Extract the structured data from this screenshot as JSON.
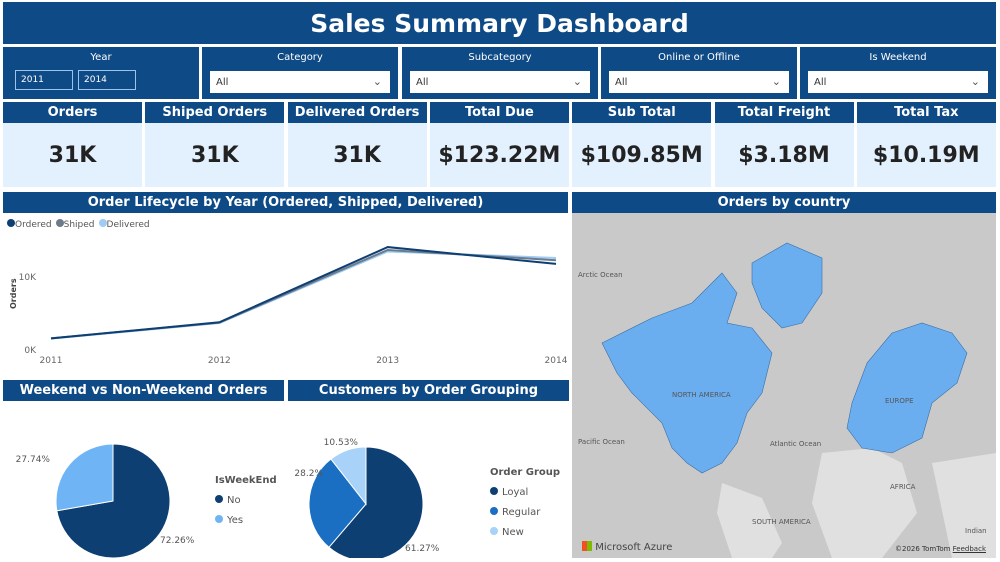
{
  "title": "Sales Summary Dashboard",
  "slicers": {
    "year": {
      "label": "Year",
      "from": "2011",
      "to": "2014"
    },
    "items": [
      {
        "label": "Category",
        "value": "All"
      },
      {
        "label": "Subcategory",
        "value": "All"
      },
      {
        "label": "Online or Offline",
        "value": "All"
      },
      {
        "label": "Is Weekend",
        "value": "All"
      }
    ]
  },
  "kpis": [
    {
      "label": "Orders",
      "value": "31K"
    },
    {
      "label": "Shiped Orders",
      "value": "31K"
    },
    {
      "label": "Delivered Orders",
      "value": "31K"
    },
    {
      "label": "Total Due",
      "value": "$123.22M"
    },
    {
      "label": "Sub Total",
      "value": "$109.85M"
    },
    {
      "label": "Total Freight",
      "value": "$3.18M"
    },
    {
      "label": "Total Tax",
      "value": "$10.19M"
    }
  ],
  "chart_data": [
    {
      "type": "line",
      "title": "Order Lifecycle by Year (Ordered, Shipped, Delivered)",
      "ylabel": "Orders",
      "xlabel": "",
      "categories": [
        "2011",
        "2012",
        "2013",
        "2014"
      ],
      "ylim": [
        0,
        15000
      ],
      "yticks": [
        "0K",
        "10K"
      ],
      "legend": "top-left",
      "series": [
        {
          "name": "Ordered",
          "color": "#0e3f73",
          "values": [
            1600,
            3800,
            14100,
            11800
          ]
        },
        {
          "name": "Shiped",
          "color": "#6b7b8c",
          "values": [
            1600,
            3750,
            13700,
            12300
          ]
        },
        {
          "name": "Delivered",
          "color": "#9fcbf5",
          "values": [
            1550,
            3700,
            13500,
            12600
          ]
        }
      ]
    },
    {
      "type": "pie",
      "title": "Weekend vs Non-Weekend Orders",
      "legend_title": "IsWeekEnd",
      "slices": [
        {
          "name": "No",
          "value": 72.26,
          "label": "72.26%",
          "color": "#0e3f73"
        },
        {
          "name": "Yes",
          "value": 27.74,
          "label": "27.74%",
          "color": "#6fb4f5"
        }
      ]
    },
    {
      "type": "pie",
      "title": "Customers by Order Grouping",
      "legend_title": "Order Group",
      "slices": [
        {
          "name": "Loyal",
          "value": 61.27,
          "label": "61.27%",
          "color": "#0e3f73"
        },
        {
          "name": "Regular",
          "value": 28.2,
          "label": "28.2%",
          "color": "#1a6fc2"
        },
        {
          "name": "New",
          "value": 10.53,
          "label": "10.53%",
          "color": "#a8d2f7"
        }
      ]
    }
  ],
  "map": {
    "title": "Orders by country",
    "labels": {
      "arctic": "Arctic Ocean",
      "pacific": "Pacific Ocean",
      "atlantic": "Atlantic Ocean",
      "na": "NORTH AMERICA",
      "europe": "EUROPE",
      "africa": "AFRICA",
      "sa": "SOUTH AMERICA",
      "indian": "Indian"
    },
    "brand": "Microsoft Azure",
    "copyright": "©2026 TomTom",
    "feedback": "Feedback",
    "land_color": "#6aaef0"
  }
}
